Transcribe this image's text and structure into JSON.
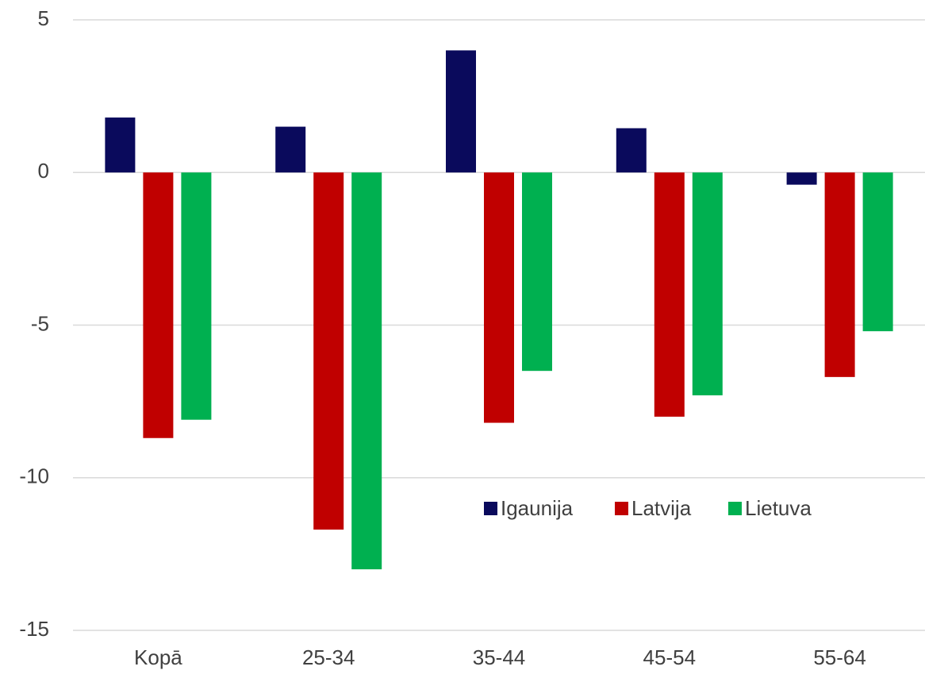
{
  "chart_data": {
    "type": "bar",
    "categories": [
      "Kopā",
      "25-34",
      "35-44",
      "45-54",
      "55-64"
    ],
    "series": [
      {
        "name": "Igaunija",
        "color": "#0a0a5c",
        "values": [
          1.8,
          1.5,
          4.0,
          1.45,
          -0.4
        ]
      },
      {
        "name": "Latvija",
        "color": "#c00000",
        "values": [
          -8.7,
          -11.7,
          -8.2,
          -8.0,
          -6.7
        ]
      },
      {
        "name": "Lietuva",
        "color": "#00b050",
        "values": [
          -8.1,
          -13.0,
          -6.5,
          -7.3,
          -5.2
        ]
      }
    ],
    "ylim": [
      -15,
      5
    ],
    "yticks": [
      -15,
      -10,
      -5,
      0,
      5
    ],
    "grid": true
  }
}
